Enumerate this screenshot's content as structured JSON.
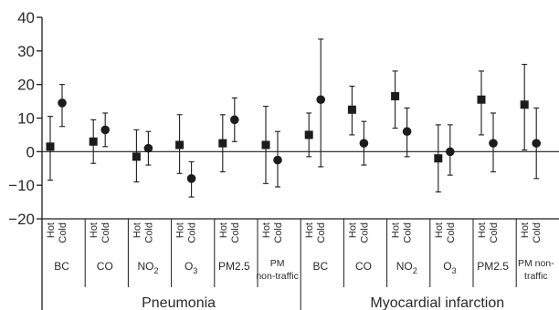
{
  "chart_data": {
    "type": "scatter",
    "title": "",
    "ylim": [
      -20,
      40
    ],
    "yticks": [
      40,
      30,
      20,
      10,
      0,
      -10,
      -20
    ],
    "ytick_labels": [
      "40",
      "30",
      "20",
      "10",
      "0",
      "−10",
      "−20"
    ],
    "zero_line": true,
    "grid": false,
    "series": [
      {
        "name": "Hot",
        "marker": "square"
      },
      {
        "name": "Cold",
        "marker": "circle"
      }
    ],
    "groups": [
      {
        "label": "Pneumonia",
        "pollutants": [
          {
            "label_lines": [
              "BC"
            ],
            "points": [
              {
                "season": "Hot",
                "estimate": 1.5,
                "lower": -8.5,
                "upper": 10.5
              },
              {
                "season": "Cold",
                "estimate": 14.5,
                "lower": 7.5,
                "upper": 20
              }
            ]
          },
          {
            "label_lines": [
              "CO"
            ],
            "points": [
              {
                "season": "Hot",
                "estimate": 3,
                "lower": -3.5,
                "upper": 9.5
              },
              {
                "season": "Cold",
                "estimate": 6.5,
                "lower": 1.5,
                "upper": 11.5
              }
            ]
          },
          {
            "label_lines": [
              "NO",
              "2"
            ],
            "subscript": true,
            "points": [
              {
                "season": "Hot",
                "estimate": -1.5,
                "lower": -9,
                "upper": 6.5
              },
              {
                "season": "Cold",
                "estimate": 1,
                "lower": -4,
                "upper": 6
              }
            ]
          },
          {
            "label_lines": [
              "O",
              "3"
            ],
            "subscript": true,
            "points": [
              {
                "season": "Hot",
                "estimate": 2,
                "lower": -6.5,
                "upper": 11
              },
              {
                "season": "Cold",
                "estimate": -8,
                "lower": -13.5,
                "upper": -3
              }
            ]
          },
          {
            "label_lines": [
              "PM2.5"
            ],
            "points": [
              {
                "season": "Hot",
                "estimate": 2.5,
                "lower": -6,
                "upper": 11
              },
              {
                "season": "Cold",
                "estimate": 9.5,
                "lower": 3,
                "upper": 16
              }
            ]
          },
          {
            "label_lines": [
              "PM",
              "non-traffic"
            ],
            "points": [
              {
                "season": "Hot",
                "estimate": 2,
                "lower": -9.5,
                "upper": 13.5
              },
              {
                "season": "Cold",
                "estimate": -2.5,
                "lower": -10.5,
                "upper": 6
              }
            ]
          }
        ]
      },
      {
        "label": "Myocardial infarction",
        "pollutants": [
          {
            "label_lines": [
              "BC"
            ],
            "points": [
              {
                "season": "Hot",
                "estimate": 5,
                "lower": -1.5,
                "upper": 11.5
              },
              {
                "season": "Cold",
                "estimate": 15.5,
                "lower": -4.5,
                "upper": 33.5
              }
            ]
          },
          {
            "label_lines": [
              "CO"
            ],
            "points": [
              {
                "season": "Hot",
                "estimate": 12.5,
                "lower": 5,
                "upper": 19.5
              },
              {
                "season": "Cold",
                "estimate": 2.5,
                "lower": -4,
                "upper": 9
              }
            ]
          },
          {
            "label_lines": [
              "NO",
              "2"
            ],
            "subscript": true,
            "points": [
              {
                "season": "Hot",
                "estimate": 16.5,
                "lower": 7,
                "upper": 24
              },
              {
                "season": "Cold",
                "estimate": 6,
                "lower": -1.5,
                "upper": 13
              }
            ]
          },
          {
            "label_lines": [
              "O",
              "3"
            ],
            "subscript": true,
            "points": [
              {
                "season": "Hot",
                "estimate": -2,
                "lower": -12,
                "upper": 8
              },
              {
                "season": "Cold",
                "estimate": 0,
                "lower": -7,
                "upper": 8
              }
            ]
          },
          {
            "label_lines": [
              "PM2.5"
            ],
            "points": [
              {
                "season": "Hot",
                "estimate": 15.5,
                "lower": 5,
                "upper": 24
              },
              {
                "season": "Cold",
                "estimate": 2.5,
                "lower": -6,
                "upper": 11.5
              }
            ]
          },
          {
            "label_lines": [
              "PM non-",
              "traffic"
            ],
            "points": [
              {
                "season": "Hot",
                "estimate": 14,
                "lower": 0.5,
                "upper": 26
              },
              {
                "season": "Cold",
                "estimate": 2.5,
                "lower": -8,
                "upper": 13
              }
            ]
          }
        ]
      }
    ],
    "colors": {
      "ink": "#1c1c1c",
      "text": "#2a2a2a"
    }
  }
}
